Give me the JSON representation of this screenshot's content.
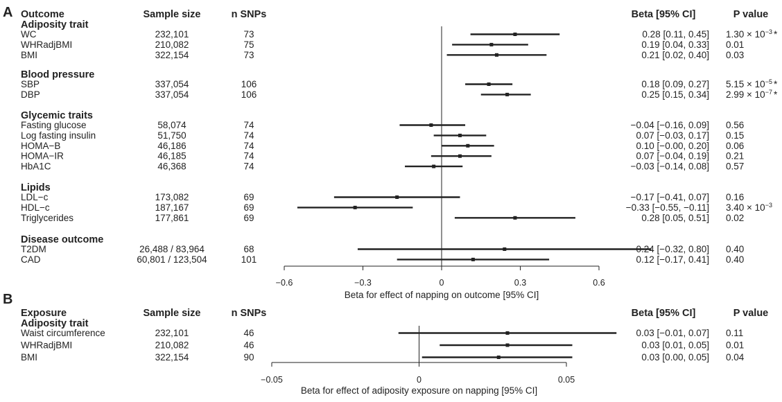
{
  "chart_data": [
    {
      "type": "forest",
      "panel": "A",
      "headers": {
        "label": "Outcome",
        "sample": "Sample size",
        "snps": "n SNPs",
        "beta": "Beta [95% CI]",
        "p": "P value"
      },
      "xlabel": "Beta for effect of napping on outcome [95% CI]",
      "xlim": [
        -0.6,
        0.6
      ],
      "ticks": [
        "−0.6",
        "−0.3",
        "0",
        "0.3",
        "0.6"
      ],
      "tick_values": [
        -0.6,
        -0.3,
        0,
        0.3,
        0.6
      ],
      "groups": [
        {
          "name": "Adiposity trait",
          "rows": [
            {
              "label": "WC",
              "sample": "232,101",
              "snps": "73",
              "beta": 0.28,
              "lo": 0.11,
              "hi": 0.45,
              "ci": "0.28 [0.11, 0.45]",
              "p_base": "1.30 × 10",
              "p_exp": "−3",
              "star": "*"
            },
            {
              "label": "WHRadjBMI",
              "sample": "210,082",
              "snps": "75",
              "beta": 0.19,
              "lo": 0.04,
              "hi": 0.33,
              "ci": "0.19 [0.04, 0.33]",
              "p": "0.01"
            },
            {
              "label": "BMI",
              "sample": "322,154",
              "snps": "73",
              "beta": 0.21,
              "lo": 0.02,
              "hi": 0.4,
              "ci": "0.21 [0.02, 0.40]",
              "p": "0.03"
            }
          ]
        },
        {
          "name": "Blood pressure",
          "rows": [
            {
              "label": "SBP",
              "sample": "337,054",
              "snps": "106",
              "beta": 0.18,
              "lo": 0.09,
              "hi": 0.27,
              "ci": "0.18 [0.09, 0.27]",
              "p_base": "5.15 × 10",
              "p_exp": "−5",
              "star": "*"
            },
            {
              "label": "DBP",
              "sample": "337,054",
              "snps": "106",
              "beta": 0.25,
              "lo": 0.15,
              "hi": 0.34,
              "ci": "0.25 [0.15, 0.34]",
              "p_base": "2.99 × 10",
              "p_exp": "−7",
              "star": "*"
            }
          ]
        },
        {
          "name": "Glycemic traits",
          "rows": [
            {
              "label": "Fasting glucose",
              "sample": "58,074",
              "snps": "74",
              "beta": -0.04,
              "lo": -0.16,
              "hi": 0.09,
              "ci": "−0.04 [−0.16, 0.09]",
              "p": "0.56"
            },
            {
              "label": "Log fasting insulin",
              "sample": "51,750",
              "snps": "74",
              "beta": 0.07,
              "lo": -0.03,
              "hi": 0.17,
              "ci": "0.07 [−0.03, 0.17]",
              "p": "0.15"
            },
            {
              "label": "HOMA−B",
              "sample": "46,186",
              "snps": "74",
              "beta": 0.1,
              "lo": 0.0,
              "hi": 0.2,
              "ci": "0.10 [−0.00, 0.20]",
              "p": "0.06"
            },
            {
              "label": "HOMA−IR",
              "sample": "46,185",
              "snps": "74",
              "beta": 0.07,
              "lo": -0.04,
              "hi": 0.19,
              "ci": "0.07 [−0.04, 0.19]",
              "p": "0.21"
            },
            {
              "label": "HbA1C",
              "sample": "46,368",
              "snps": "74",
              "beta": -0.03,
              "lo": -0.14,
              "hi": 0.08,
              "ci": "−0.03 [−0.14, 0.08]",
              "p": "0.57"
            }
          ]
        },
        {
          "name": "Lipids",
          "rows": [
            {
              "label": "LDL−c",
              "sample": "173,082",
              "snps": "69",
              "beta": -0.17,
              "lo": -0.41,
              "hi": 0.07,
              "ci": "−0.17 [−0.41, 0.07]",
              "p": "0.16"
            },
            {
              "label": "HDL−c",
              "sample": "187,167",
              "snps": "69",
              "beta": -0.33,
              "lo": -0.55,
              "hi": -0.11,
              "ci": "−0.33 [−0.55, −0.11]",
              "p_base": "3.40 × 10",
              "p_exp": "−3",
              "star": ""
            },
            {
              "label": "Triglycerides",
              "sample": "177,861",
              "snps": "69",
              "beta": 0.28,
              "lo": 0.05,
              "hi": 0.51,
              "ci": "0.28 [0.05, 0.51]",
              "p": "0.02"
            }
          ]
        },
        {
          "name": "Disease outcome",
          "rows": [
            {
              "label": "T2DM",
              "sample": "26,488 / 83,964",
              "snps": "68",
              "beta": 0.24,
              "lo": -0.32,
              "hi": 0.8,
              "ci": "0.24 [−0.32, 0.80]",
              "p": "0.40"
            },
            {
              "label": "CAD",
              "sample": "60,801 / 123,504",
              "snps": "101",
              "beta": 0.12,
              "lo": -0.17,
              "hi": 0.41,
              "ci": "0.12 [−0.17, 0.41]",
              "p": "0.40"
            }
          ]
        }
      ]
    },
    {
      "type": "forest",
      "panel": "B",
      "headers": {
        "label": "Exposure",
        "sample": "Sample size",
        "snps": "n SNPs",
        "beta": "Beta [95% CI]",
        "p": "P value"
      },
      "xlabel": "Beta for effect of adiposity exposure on napping [95% CI]",
      "xlim": [
        -0.05,
        0.05
      ],
      "ticks": [
        "−0.05",
        "0",
        "0.05"
      ],
      "tick_values": [
        -0.05,
        0,
        0.05
      ],
      "groups": [
        {
          "name": "Adiposity trait",
          "rows": [
            {
              "label": "Waist circumference",
              "sample": "232,101",
              "snps": "46",
              "beta": 0.03,
              "lo": -0.007,
              "hi": 0.067,
              "ci": "0.03 [−0.01, 0.07]",
              "p": "0.11"
            },
            {
              "label": "WHRadjBMI",
              "sample": "210,082",
              "snps": "46",
              "beta": 0.03,
              "lo": 0.007,
              "hi": 0.052,
              "ci": "0.03 [0.01, 0.05]",
              "p": "0.01"
            },
            {
              "label": "BMI",
              "sample": "322,154",
              "snps": "90",
              "beta": 0.027,
              "lo": 0.001,
              "hi": 0.052,
              "ci": "0.03 [0.00, 0.05]",
              "p": "0.04"
            }
          ]
        }
      ]
    }
  ]
}
